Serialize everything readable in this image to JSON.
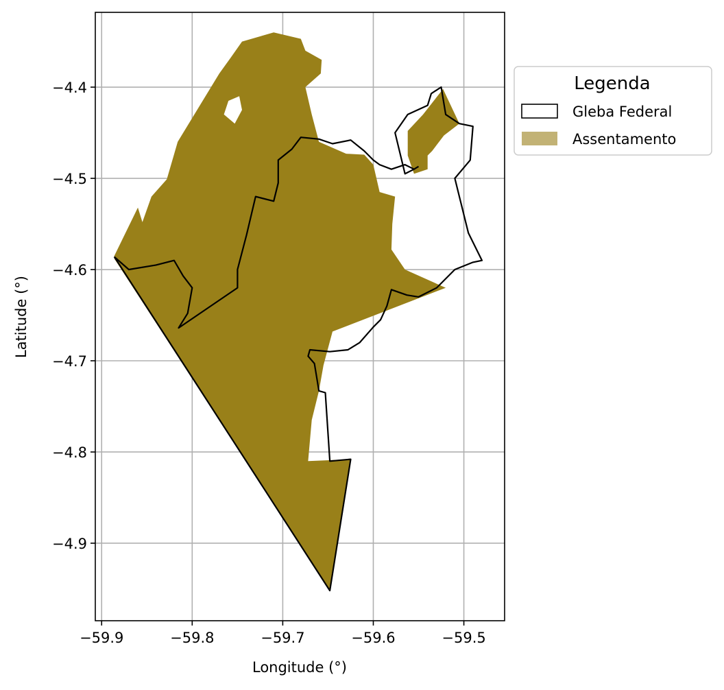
{
  "chart_data": {
    "type": "map",
    "xlabel": "Longitude (°)",
    "ylabel": "Latitude (°)",
    "xlim": [
      -59.907,
      -59.455
    ],
    "ylim": [
      -4.985,
      -4.318
    ],
    "grid": true,
    "x_ticks": [
      {
        "value": -59.9,
        "label": "−59.9"
      },
      {
        "value": -59.8,
        "label": "−59.8"
      },
      {
        "value": -59.7,
        "label": "−59.7"
      },
      {
        "value": -59.6,
        "label": "−59.6"
      },
      {
        "value": -59.5,
        "label": "−59.5"
      }
    ],
    "y_ticks": [
      {
        "value": -4.4,
        "label": "−4.4"
      },
      {
        "value": -4.5,
        "label": "−4.5"
      },
      {
        "value": -4.6,
        "label": "−4.6"
      },
      {
        "value": -4.7,
        "label": "−4.7"
      },
      {
        "value": -4.8,
        "label": "−4.8"
      },
      {
        "value": -4.9,
        "label": "−4.9"
      }
    ],
    "legend": {
      "title": "Legenda",
      "placement": "outside-upper-right",
      "entries": [
        {
          "label": "Gleba Federal",
          "style": "outline",
          "edge_color": "#000000",
          "fill": "#ffffff"
        },
        {
          "label": "Assentamento",
          "style": "fill",
          "fill": "#c2b275"
        }
      ]
    },
    "layers": [
      {
        "name": "Assentamento",
        "kind": "polygon",
        "fill": "#998019",
        "polygons": [
          [
            [
              -59.886,
              -4.585
            ],
            [
              -59.86,
              -4.532
            ],
            [
              -59.855,
              -4.548
            ],
            [
              -59.845,
              -4.52
            ],
            [
              -59.828,
              -4.501
            ],
            [
              -59.816,
              -4.46
            ],
            [
              -59.77,
              -4.385
            ],
            [
              -59.757,
              -4.367
            ],
            [
              -59.745,
              -4.35
            ],
            [
              -59.71,
              -4.34
            ],
            [
              -59.68,
              -4.347
            ],
            [
              -59.675,
              -4.36
            ],
            [
              -59.657,
              -4.37
            ],
            [
              -59.658,
              -4.385
            ],
            [
              -59.675,
              -4.4
            ],
            [
              -59.668,
              -4.43
            ],
            [
              -59.66,
              -4.46
            ],
            [
              -59.63,
              -4.473
            ],
            [
              -59.61,
              -4.474
            ],
            [
              -59.6,
              -4.485
            ],
            [
              -59.593,
              -4.515
            ],
            [
              -59.576,
              -4.52
            ],
            [
              -59.579,
              -4.55
            ],
            [
              -59.58,
              -4.578
            ],
            [
              -59.565,
              -4.6
            ],
            [
              -59.52,
              -4.62
            ],
            [
              -59.645,
              -4.668
            ],
            [
              -59.655,
              -4.705
            ],
            [
              -59.66,
              -4.733
            ],
            [
              -59.668,
              -4.765
            ],
            [
              -59.672,
              -4.81
            ],
            [
              -59.625,
              -4.808
            ],
            [
              -59.648,
              -4.952
            ],
            [
              -59.886,
              -4.588
            ]
          ],
          [
            [
              -59.562,
              -4.448
            ],
            [
              -59.545,
              -4.43
            ],
            [
              -59.523,
              -4.402
            ],
            [
              -59.505,
              -4.44
            ],
            [
              -59.522,
              -4.453
            ],
            [
              -59.535,
              -4.47
            ],
            [
              -59.54,
              -4.475
            ],
            [
              -59.54,
              -4.49
            ],
            [
              -59.555,
              -4.495
            ],
            [
              -59.562,
              -4.475
            ]
          ]
        ],
        "holes": [
          [
            [
              -59.76,
              -4.415
            ],
            [
              -59.748,
              -4.41
            ],
            [
              -59.745,
              -4.425
            ],
            [
              -59.753,
              -4.44
            ],
            [
              -59.765,
              -4.43
            ]
          ]
        ]
      },
      {
        "name": "Gleba Federal",
        "kind": "outline",
        "edge_color": "#000000",
        "polylines": [
          [
            [
              -59.886,
              -4.586
            ],
            [
              -59.87,
              -4.6
            ],
            [
              -59.84,
              -4.595
            ],
            [
              -59.82,
              -4.59
            ],
            [
              -59.81,
              -4.607
            ],
            [
              -59.8,
              -4.62
            ],
            [
              -59.805,
              -4.648
            ],
            [
              -59.815,
              -4.664
            ],
            [
              -59.75,
              -4.62
            ],
            [
              -59.75,
              -4.6
            ],
            [
              -59.74,
              -4.562
            ],
            [
              -59.73,
              -4.52
            ],
            [
              -59.71,
              -4.525
            ],
            [
              -59.705,
              -4.505
            ],
            [
              -59.705,
              -4.48
            ],
            [
              -59.69,
              -4.468
            ],
            [
              -59.68,
              -4.455
            ],
            [
              -59.66,
              -4.457
            ],
            [
              -59.645,
              -4.462
            ],
            [
              -59.625,
              -4.458
            ],
            [
              -59.61,
              -4.47
            ],
            [
              -59.6,
              -4.48
            ],
            [
              -59.593,
              -4.485
            ],
            [
              -59.58,
              -4.49
            ],
            [
              -59.565,
              -4.485
            ],
            [
              -59.555,
              -4.49
            ],
            [
              -59.55,
              -4.487
            ]
          ],
          [
            [
              -59.886,
              -4.586
            ],
            [
              -59.648,
              -4.952
            ],
            [
              -59.625,
              -4.808
            ],
            [
              -59.648,
              -4.81
            ],
            [
              -59.653,
              -4.735
            ],
            [
              -59.66,
              -4.733
            ],
            [
              -59.665,
              -4.703
            ],
            [
              -59.672,
              -4.695
            ],
            [
              -59.67,
              -4.688
            ],
            [
              -59.648,
              -4.69
            ],
            [
              -59.628,
              -4.688
            ],
            [
              -59.615,
              -4.68
            ],
            [
              -59.6,
              -4.663
            ],
            [
              -59.592,
              -4.655
            ],
            [
              -59.585,
              -4.64
            ],
            [
              -59.58,
              -4.622
            ],
            [
              -59.563,
              -4.628
            ],
            [
              -59.55,
              -4.63
            ],
            [
              -59.53,
              -4.62
            ],
            [
              -59.51,
              -4.6
            ],
            [
              -59.49,
              -4.592
            ],
            [
              -59.48,
              -4.59
            ],
            [
              -59.495,
              -4.56
            ],
            [
              -59.505,
              -4.52
            ],
            [
              -59.51,
              -4.5
            ],
            [
              -59.493,
              -4.48
            ],
            [
              -59.49,
              -4.443
            ],
            [
              -59.505,
              -4.44
            ],
            [
              -59.52,
              -4.43
            ],
            [
              -59.525,
              -4.4
            ],
            [
              -59.536,
              -4.407
            ],
            [
              -59.54,
              -4.42
            ],
            [
              -59.562,
              -4.43
            ],
            [
              -59.576,
              -4.45
            ],
            [
              -59.565,
              -4.495
            ],
            [
              -59.555,
              -4.49
            ]
          ]
        ]
      }
    ]
  }
}
